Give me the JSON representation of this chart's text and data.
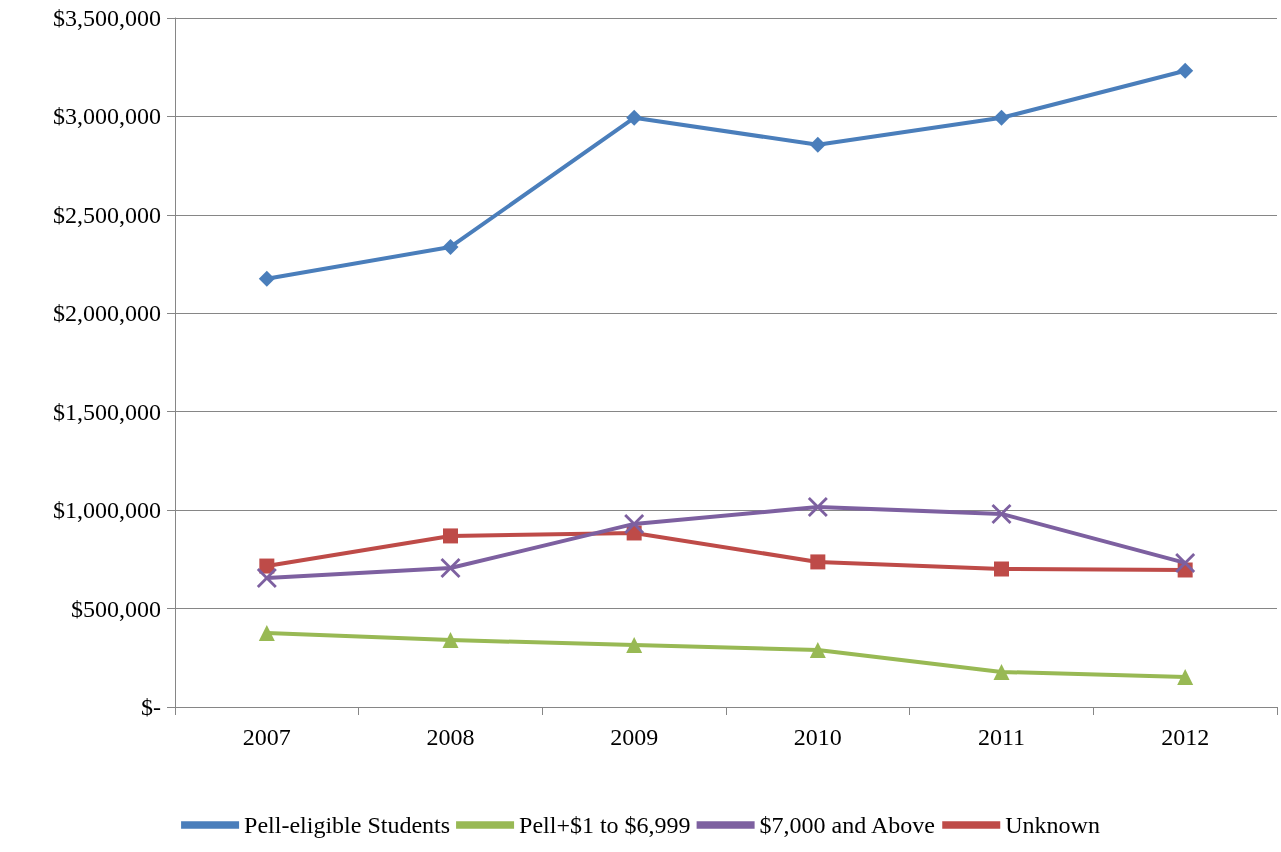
{
  "chart_data": {
    "type": "line",
    "categories": [
      "2007",
      "2008",
      "2009",
      "2010",
      "2011",
      "2012"
    ],
    "series": [
      {
        "name": "Pell-eligible Students",
        "color": "#4a7ebb",
        "marker": "diamond",
        "values": [
          2175000,
          2337000,
          2993000,
          2856000,
          2993000,
          3232000
        ]
      },
      {
        "name": "Pell+$1 to $6,999",
        "color": "#98b954",
        "marker": "triangle",
        "values": [
          376000,
          340000,
          315000,
          290000,
          178000,
          152000
        ]
      },
      {
        "name": "$7,000 and Above",
        "color": "#7d60a0",
        "marker": "cross",
        "values": [
          655000,
          706000,
          930000,
          1016000,
          981000,
          732000
        ]
      },
      {
        "name": "Unknown",
        "color": "#be4b48",
        "marker": "square",
        "values": [
          716000,
          869000,
          884000,
          737000,
          701000,
          696000
        ]
      }
    ],
    "ylim": [
      0,
      3500000
    ],
    "yticks": [
      {
        "value": 0,
        "label": "$-"
      },
      {
        "value": 500000,
        "label": "$500,000"
      },
      {
        "value": 1000000,
        "label": "$1,000,000"
      },
      {
        "value": 1500000,
        "label": "$1,500,000"
      },
      {
        "value": 2000000,
        "label": "$2,000,000"
      },
      {
        "value": 2500000,
        "label": "$2,500,000"
      },
      {
        "value": 3000000,
        "label": "$3,000,000"
      },
      {
        "value": 3500000,
        "label": "$3,500,000"
      }
    ],
    "grid": "y",
    "legend": "bottom",
    "line_style": "solid"
  }
}
